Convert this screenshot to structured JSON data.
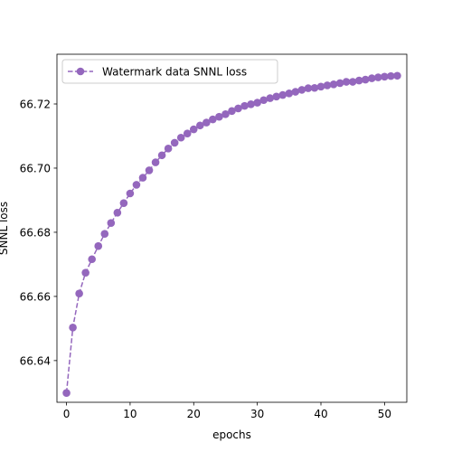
{
  "chart_data": {
    "type": "line",
    "title": "",
    "xlabel": "epochs",
    "ylabel": "SNNL loss",
    "xlim": [
      -1.5,
      53.5
    ],
    "ylim": [
      66.627,
      66.7355
    ],
    "xticks": [
      0,
      10,
      20,
      30,
      40,
      50
    ],
    "yticks": [
      66.64,
      66.66,
      66.68,
      66.7,
      66.72
    ],
    "ytick_labels": [
      "66.64",
      "66.66",
      "66.68",
      "66.70",
      "66.72"
    ],
    "grid": false,
    "legend_position": "top-left",
    "series": [
      {
        "name": "Watermark data SNNL loss",
        "color": "#9467bd",
        "linestyle": "dashed",
        "marker": "circle",
        "x": [
          0,
          1,
          2,
          3,
          4,
          5,
          6,
          7,
          8,
          9,
          10,
          11,
          12,
          13,
          14,
          15,
          16,
          17,
          18,
          19,
          20,
          21,
          22,
          23,
          24,
          25,
          26,
          27,
          28,
          29,
          30,
          31,
          32,
          33,
          34,
          35,
          36,
          37,
          38,
          39,
          40,
          41,
          42,
          43,
          44,
          45,
          46,
          47,
          48,
          49,
          50,
          51,
          52
        ],
        "y": [
          66.6299,
          66.6503,
          66.6609,
          66.6674,
          66.6716,
          66.6757,
          66.6795,
          66.6829,
          66.6861,
          66.6891,
          66.6921,
          66.6948,
          66.697,
          66.6993,
          66.7018,
          66.704,
          66.7061,
          66.7079,
          66.7095,
          66.7108,
          66.7121,
          66.7133,
          66.7142,
          66.7152,
          66.716,
          66.7168,
          66.7178,
          66.7186,
          66.7194,
          66.7199,
          66.7204,
          66.7212,
          66.7218,
          66.7223,
          66.7228,
          66.7233,
          66.7238,
          66.7244,
          66.7249,
          66.725,
          66.7254,
          66.7258,
          66.7261,
          66.7265,
          66.7269,
          66.7269,
          66.7273,
          66.7276,
          66.728,
          66.7283,
          66.7285,
          66.7287,
          66.7288
        ]
      }
    ]
  }
}
